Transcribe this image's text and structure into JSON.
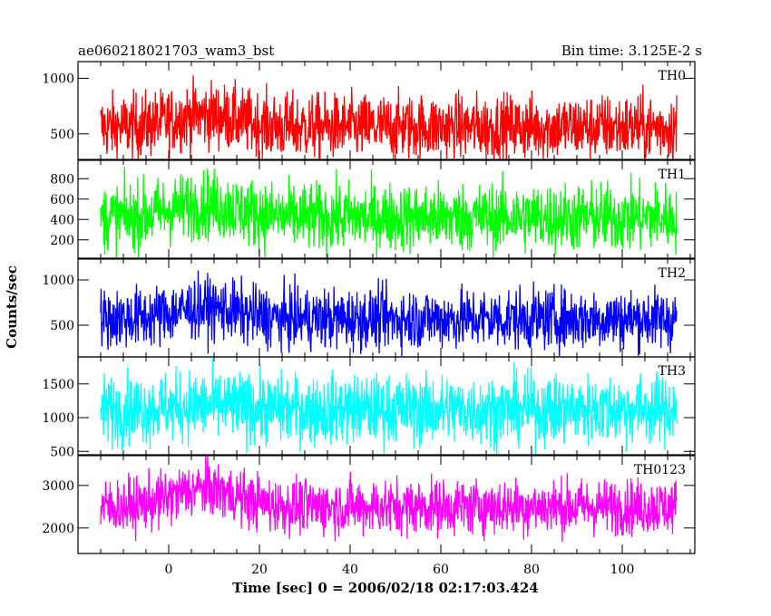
{
  "chart_data": {
    "type": "line",
    "title_left": "ae060218021703_wam3_bst",
    "title_right": "Bin time: 3.125E-2 s",
    "xlabel": "Time [sec] 0 = 2006/02/18 02:17:03.424",
    "ylabel": "Counts/sec",
    "xlim": [
      -20,
      116
    ],
    "x_start": -15,
    "x_end": 112,
    "x_ticks": [
      0,
      20,
      40,
      60,
      80,
      100
    ],
    "grid": false,
    "panels": [
      {
        "name": "TH0",
        "color": "#ff0000",
        "ylim": [
          270,
          1150
        ],
        "y_ticks": [
          500,
          1000
        ],
        "mean": 560,
        "bump": 110,
        "spread": 150,
        "min_clip": 275,
        "max_clip": 1150
      },
      {
        "name": "TH1",
        "color": "#00ff00",
        "ylim": [
          20,
          980
        ],
        "y_ticks": [
          200,
          400,
          600,
          800
        ],
        "mean": 420,
        "bump": 130,
        "spread": 170,
        "min_clip": 25,
        "max_clip": 980
      },
      {
        "name": "TH2",
        "color": "#0000ff",
        "ylim": [
          150,
          1230
        ],
        "y_ticks": [
          500,
          1000
        ],
        "mean": 570,
        "bump": 120,
        "spread": 170,
        "min_clip": 160,
        "max_clip": 1230
      },
      {
        "name": "TH3",
        "color": "#00ffff",
        "ylim": [
          450,
          1900
        ],
        "y_ticks": [
          500,
          1000,
          1500
        ],
        "mean": 1120,
        "bump": 60,
        "spread": 260,
        "min_clip": 460,
        "max_clip": 1900
      },
      {
        "name": "TH0123",
        "color": "#ff00ff",
        "ylim": [
          1400,
          3700
        ],
        "y_ticks": [
          2000,
          3000
        ],
        "mean": 2500,
        "bump": 420,
        "spread": 330,
        "min_clip": 1420,
        "max_clip": 3700
      }
    ]
  }
}
